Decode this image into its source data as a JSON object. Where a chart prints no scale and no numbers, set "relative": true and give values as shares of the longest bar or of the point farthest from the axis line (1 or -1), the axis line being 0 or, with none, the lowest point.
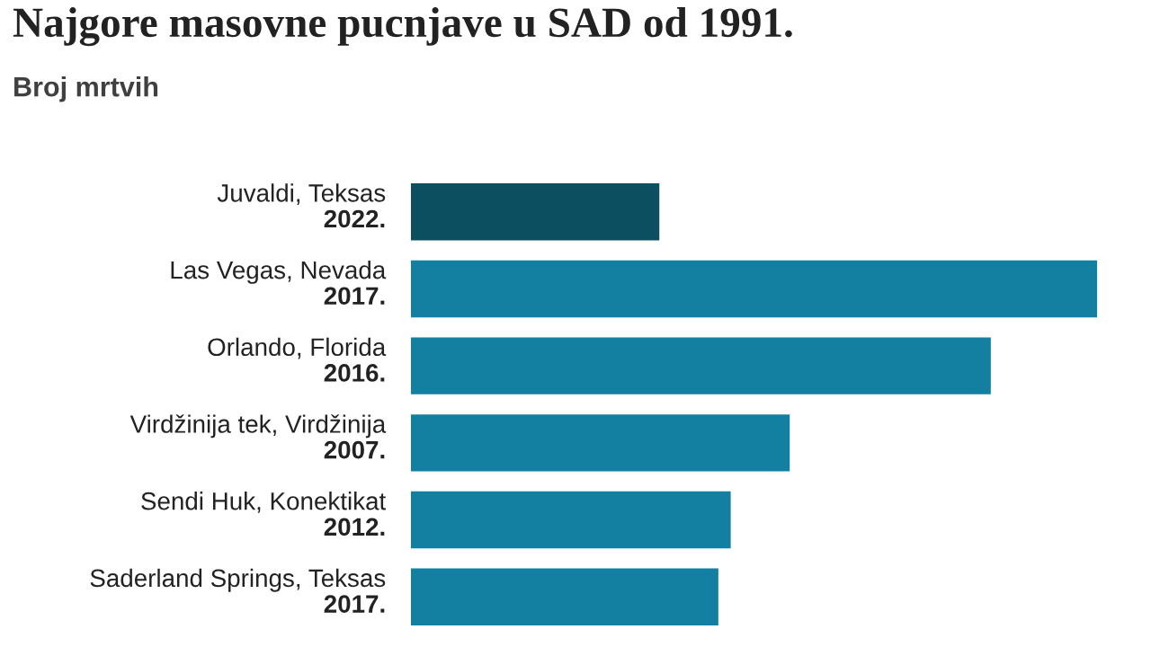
{
  "chart_data": {
    "type": "bar",
    "orientation": "horizontal",
    "relative": true,
    "title": "Najgore masovne pucnjave u SAD od 1991.",
    "subtitle": "Broj mrtvih",
    "categories": [
      "Juvaldi, Teksas\n2022.",
      "Las Vegas, Nevada\n2017.",
      "Orlando, Florida\n2016.",
      "Virdžinija tek, Virdžinija\n2007.",
      "Sendi Huk, Konektikat\n2012.",
      "Saderland Springs, Teksas\n2017."
    ],
    "values": [
      0.362,
      1,
      0.845,
      0.552,
      0.466,
      0.448
    ],
    "colors": [
      "#0b4f60",
      "#1380a1",
      "#1380a1",
      "#1380a1",
      "#1380a1",
      "#1380a1"
    ]
  }
}
